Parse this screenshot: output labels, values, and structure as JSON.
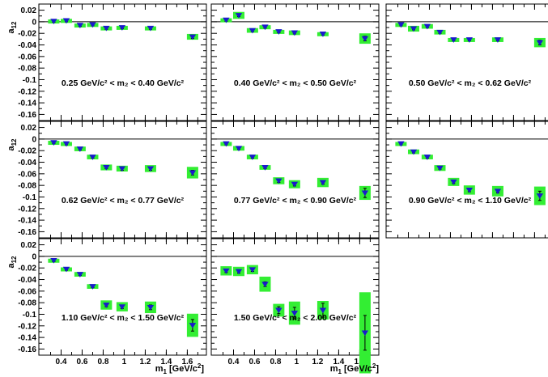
{
  "figure": {
    "ylabel_main": "a",
    "ylabel_sub": "12",
    "xlabel_main": "m",
    "xlabel_sub": "1",
    "xlabel_unit": "[GeV/c",
    "xlabel_unit_sup": "2",
    "xlabel_unit_end": "]"
  },
  "colors": {
    "band": "#33ee33",
    "marker": "#1a1acc",
    "frame": "#000000",
    "zero_line": "#000000"
  },
  "chart_data": {
    "type": "scatter",
    "xlim": [
      0.25,
      1.72
    ],
    "ylim": [
      -0.165,
      0.025
    ],
    "grid": false,
    "x_ticks": [
      "0.4",
      "0.6",
      "0.8",
      "1",
      "1.2",
      "1.4",
      "1.6"
    ],
    "x_tick_values": [
      0.4,
      0.6,
      0.8,
      1.0,
      1.2,
      1.4,
      1.6
    ],
    "y_ticks": [
      "0.02",
      "0",
      "-0.02",
      "-0.04",
      "-0.06",
      "-0.08",
      "-0.1",
      "-0.12",
      "-0.14",
      "-0.16"
    ],
    "y_tick_values": [
      0.02,
      0.0,
      -0.02,
      -0.04,
      -0.06,
      -0.08,
      -0.1,
      -0.12,
      -0.14,
      -0.16
    ],
    "panels": [
      {
        "label": "0.25 GeV/c² < m₂ < 0.40 GeV/c²",
        "points": [
          {
            "x": 0.33,
            "y": 0.001,
            "sys": 0.003,
            "err": 0.002
          },
          {
            "x": 0.45,
            "y": 0.002,
            "sys": 0.003,
            "err": 0.002
          },
          {
            "x": 0.58,
            "y": -0.006,
            "sys": 0.003,
            "err": 0.002
          },
          {
            "x": 0.7,
            "y": -0.005,
            "sys": 0.003,
            "err": 0.002
          },
          {
            "x": 0.83,
            "y": -0.011,
            "sys": 0.003,
            "err": 0.002
          },
          {
            "x": 0.98,
            "y": -0.01,
            "sys": 0.003,
            "err": 0.002
          },
          {
            "x": 1.25,
            "y": -0.011,
            "sys": 0.003,
            "err": 0.002
          },
          {
            "x": 1.65,
            "y": -0.026,
            "sys": 0.005,
            "err": 0.003
          }
        ]
      },
      {
        "label": "0.40 GeV/c² < m₂ < 0.50 GeV/c²",
        "points": [
          {
            "x": 0.33,
            "y": 0.003,
            "sys": 0.003,
            "err": 0.002
          },
          {
            "x": 0.45,
            "y": 0.011,
            "sys": 0.006,
            "err": 0.002
          },
          {
            "x": 0.58,
            "y": -0.015,
            "sys": 0.004,
            "err": 0.002
          },
          {
            "x": 0.7,
            "y": -0.009,
            "sys": 0.003,
            "err": 0.002
          },
          {
            "x": 0.83,
            "y": -0.017,
            "sys": 0.003,
            "err": 0.002
          },
          {
            "x": 0.98,
            "y": -0.019,
            "sys": 0.004,
            "err": 0.002
          },
          {
            "x": 1.25,
            "y": -0.021,
            "sys": 0.003,
            "err": 0.002
          },
          {
            "x": 1.65,
            "y": -0.029,
            "sys": 0.009,
            "err": 0.004
          }
        ]
      },
      {
        "label": "0.50 GeV/c² < m₂ < 0.62 GeV/c²",
        "points": [
          {
            "x": 0.33,
            "y": -0.005,
            "sys": 0.003,
            "err": 0.002
          },
          {
            "x": 0.45,
            "y": -0.012,
            "sys": 0.005,
            "err": 0.002
          },
          {
            "x": 0.58,
            "y": -0.008,
            "sys": 0.004,
            "err": 0.002
          },
          {
            "x": 0.7,
            "y": -0.018,
            "sys": 0.004,
            "err": 0.002
          },
          {
            "x": 0.83,
            "y": -0.031,
            "sys": 0.003,
            "err": 0.002
          },
          {
            "x": 0.98,
            "y": -0.031,
            "sys": 0.003,
            "err": 0.002
          },
          {
            "x": 1.25,
            "y": -0.031,
            "sys": 0.004,
            "err": 0.002
          },
          {
            "x": 1.65,
            "y": -0.036,
            "sys": 0.008,
            "err": 0.004
          }
        ]
      },
      {
        "label": "0.62 GeV/c² < m₂ < 0.77 GeV/c²",
        "points": [
          {
            "x": 0.33,
            "y": -0.006,
            "sys": 0.003,
            "err": 0.002
          },
          {
            "x": 0.45,
            "y": -0.008,
            "sys": 0.003,
            "err": 0.002
          },
          {
            "x": 0.58,
            "y": -0.017,
            "sys": 0.004,
            "err": 0.002
          },
          {
            "x": 0.7,
            "y": -0.031,
            "sys": 0.004,
            "err": 0.002
          },
          {
            "x": 0.83,
            "y": -0.049,
            "sys": 0.005,
            "err": 0.002
          },
          {
            "x": 0.98,
            "y": -0.051,
            "sys": 0.005,
            "err": 0.003
          },
          {
            "x": 1.25,
            "y": -0.051,
            "sys": 0.006,
            "err": 0.003
          },
          {
            "x": 1.65,
            "y": -0.058,
            "sys": 0.01,
            "err": 0.004
          }
        ]
      },
      {
        "label": "0.77 GeV/c² < m₂ < 0.90 GeV/c²",
        "points": [
          {
            "x": 0.33,
            "y": -0.008,
            "sys": 0.003,
            "err": 0.002
          },
          {
            "x": 0.45,
            "y": -0.016,
            "sys": 0.004,
            "err": 0.002
          },
          {
            "x": 0.58,
            "y": -0.031,
            "sys": 0.004,
            "err": 0.002
          },
          {
            "x": 0.7,
            "y": -0.049,
            "sys": 0.004,
            "err": 0.002
          },
          {
            "x": 0.83,
            "y": -0.072,
            "sys": 0.006,
            "err": 0.003
          },
          {
            "x": 0.98,
            "y": -0.078,
            "sys": 0.007,
            "err": 0.003
          },
          {
            "x": 1.25,
            "y": -0.075,
            "sys": 0.008,
            "err": 0.003
          },
          {
            "x": 1.65,
            "y": -0.093,
            "sys": 0.012,
            "err": 0.008
          }
        ]
      },
      {
        "label": "0.90 GeV/c² < m₂ < 1.10 GeV/c²",
        "points": [
          {
            "x": 0.33,
            "y": -0.008,
            "sys": 0.003,
            "err": 0.002
          },
          {
            "x": 0.45,
            "y": -0.022,
            "sys": 0.004,
            "err": 0.002
          },
          {
            "x": 0.58,
            "y": -0.031,
            "sys": 0.004,
            "err": 0.002
          },
          {
            "x": 0.7,
            "y": -0.05,
            "sys": 0.005,
            "err": 0.002
          },
          {
            "x": 0.83,
            "y": -0.074,
            "sys": 0.007,
            "err": 0.003
          },
          {
            "x": 0.98,
            "y": -0.088,
            "sys": 0.008,
            "err": 0.003
          },
          {
            "x": 1.25,
            "y": -0.09,
            "sys": 0.009,
            "err": 0.003
          },
          {
            "x": 1.65,
            "y": -0.098,
            "sys": 0.016,
            "err": 0.008
          }
        ]
      },
      {
        "label": "1.10 GeV/c² < m₂ < 1.50 GeV/c²",
        "points": [
          {
            "x": 0.33,
            "y": -0.007,
            "sys": 0.003,
            "err": 0.002
          },
          {
            "x": 0.45,
            "y": -0.022,
            "sys": 0.003,
            "err": 0.002
          },
          {
            "x": 0.58,
            "y": -0.031,
            "sys": 0.004,
            "err": 0.002
          },
          {
            "x": 0.7,
            "y": -0.052,
            "sys": 0.004,
            "err": 0.002
          },
          {
            "x": 0.83,
            "y": -0.084,
            "sys": 0.008,
            "err": 0.003
          },
          {
            "x": 0.98,
            "y": -0.087,
            "sys": 0.008,
            "err": 0.003
          },
          {
            "x": 1.25,
            "y": -0.088,
            "sys": 0.01,
            "err": 0.004
          },
          {
            "x": 1.65,
            "y": -0.119,
            "sys": 0.02,
            "err": 0.01
          }
        ]
      },
      {
        "label": "1.50 GeV/c² < m₂ < 2.00 GeV/c²",
        "points": [
          {
            "x": 0.33,
            "y": -0.025,
            "sys": 0.008,
            "err": 0.003
          },
          {
            "x": 0.45,
            "y": -0.026,
            "sys": 0.008,
            "err": 0.003
          },
          {
            "x": 0.58,
            "y": -0.023,
            "sys": 0.008,
            "err": 0.003
          },
          {
            "x": 0.7,
            "y": -0.048,
            "sys": 0.013,
            "err": 0.004
          },
          {
            "x": 0.83,
            "y": -0.093,
            "sys": 0.011,
            "err": 0.006
          },
          {
            "x": 0.98,
            "y": -0.098,
            "sys": 0.02,
            "err": 0.01
          },
          {
            "x": 1.25,
            "y": -0.093,
            "sys": 0.016,
            "err": 0.012
          },
          {
            "x": 1.65,
            "y": -0.132,
            "sys": 0.07,
            "err": 0.03
          }
        ]
      }
    ]
  }
}
